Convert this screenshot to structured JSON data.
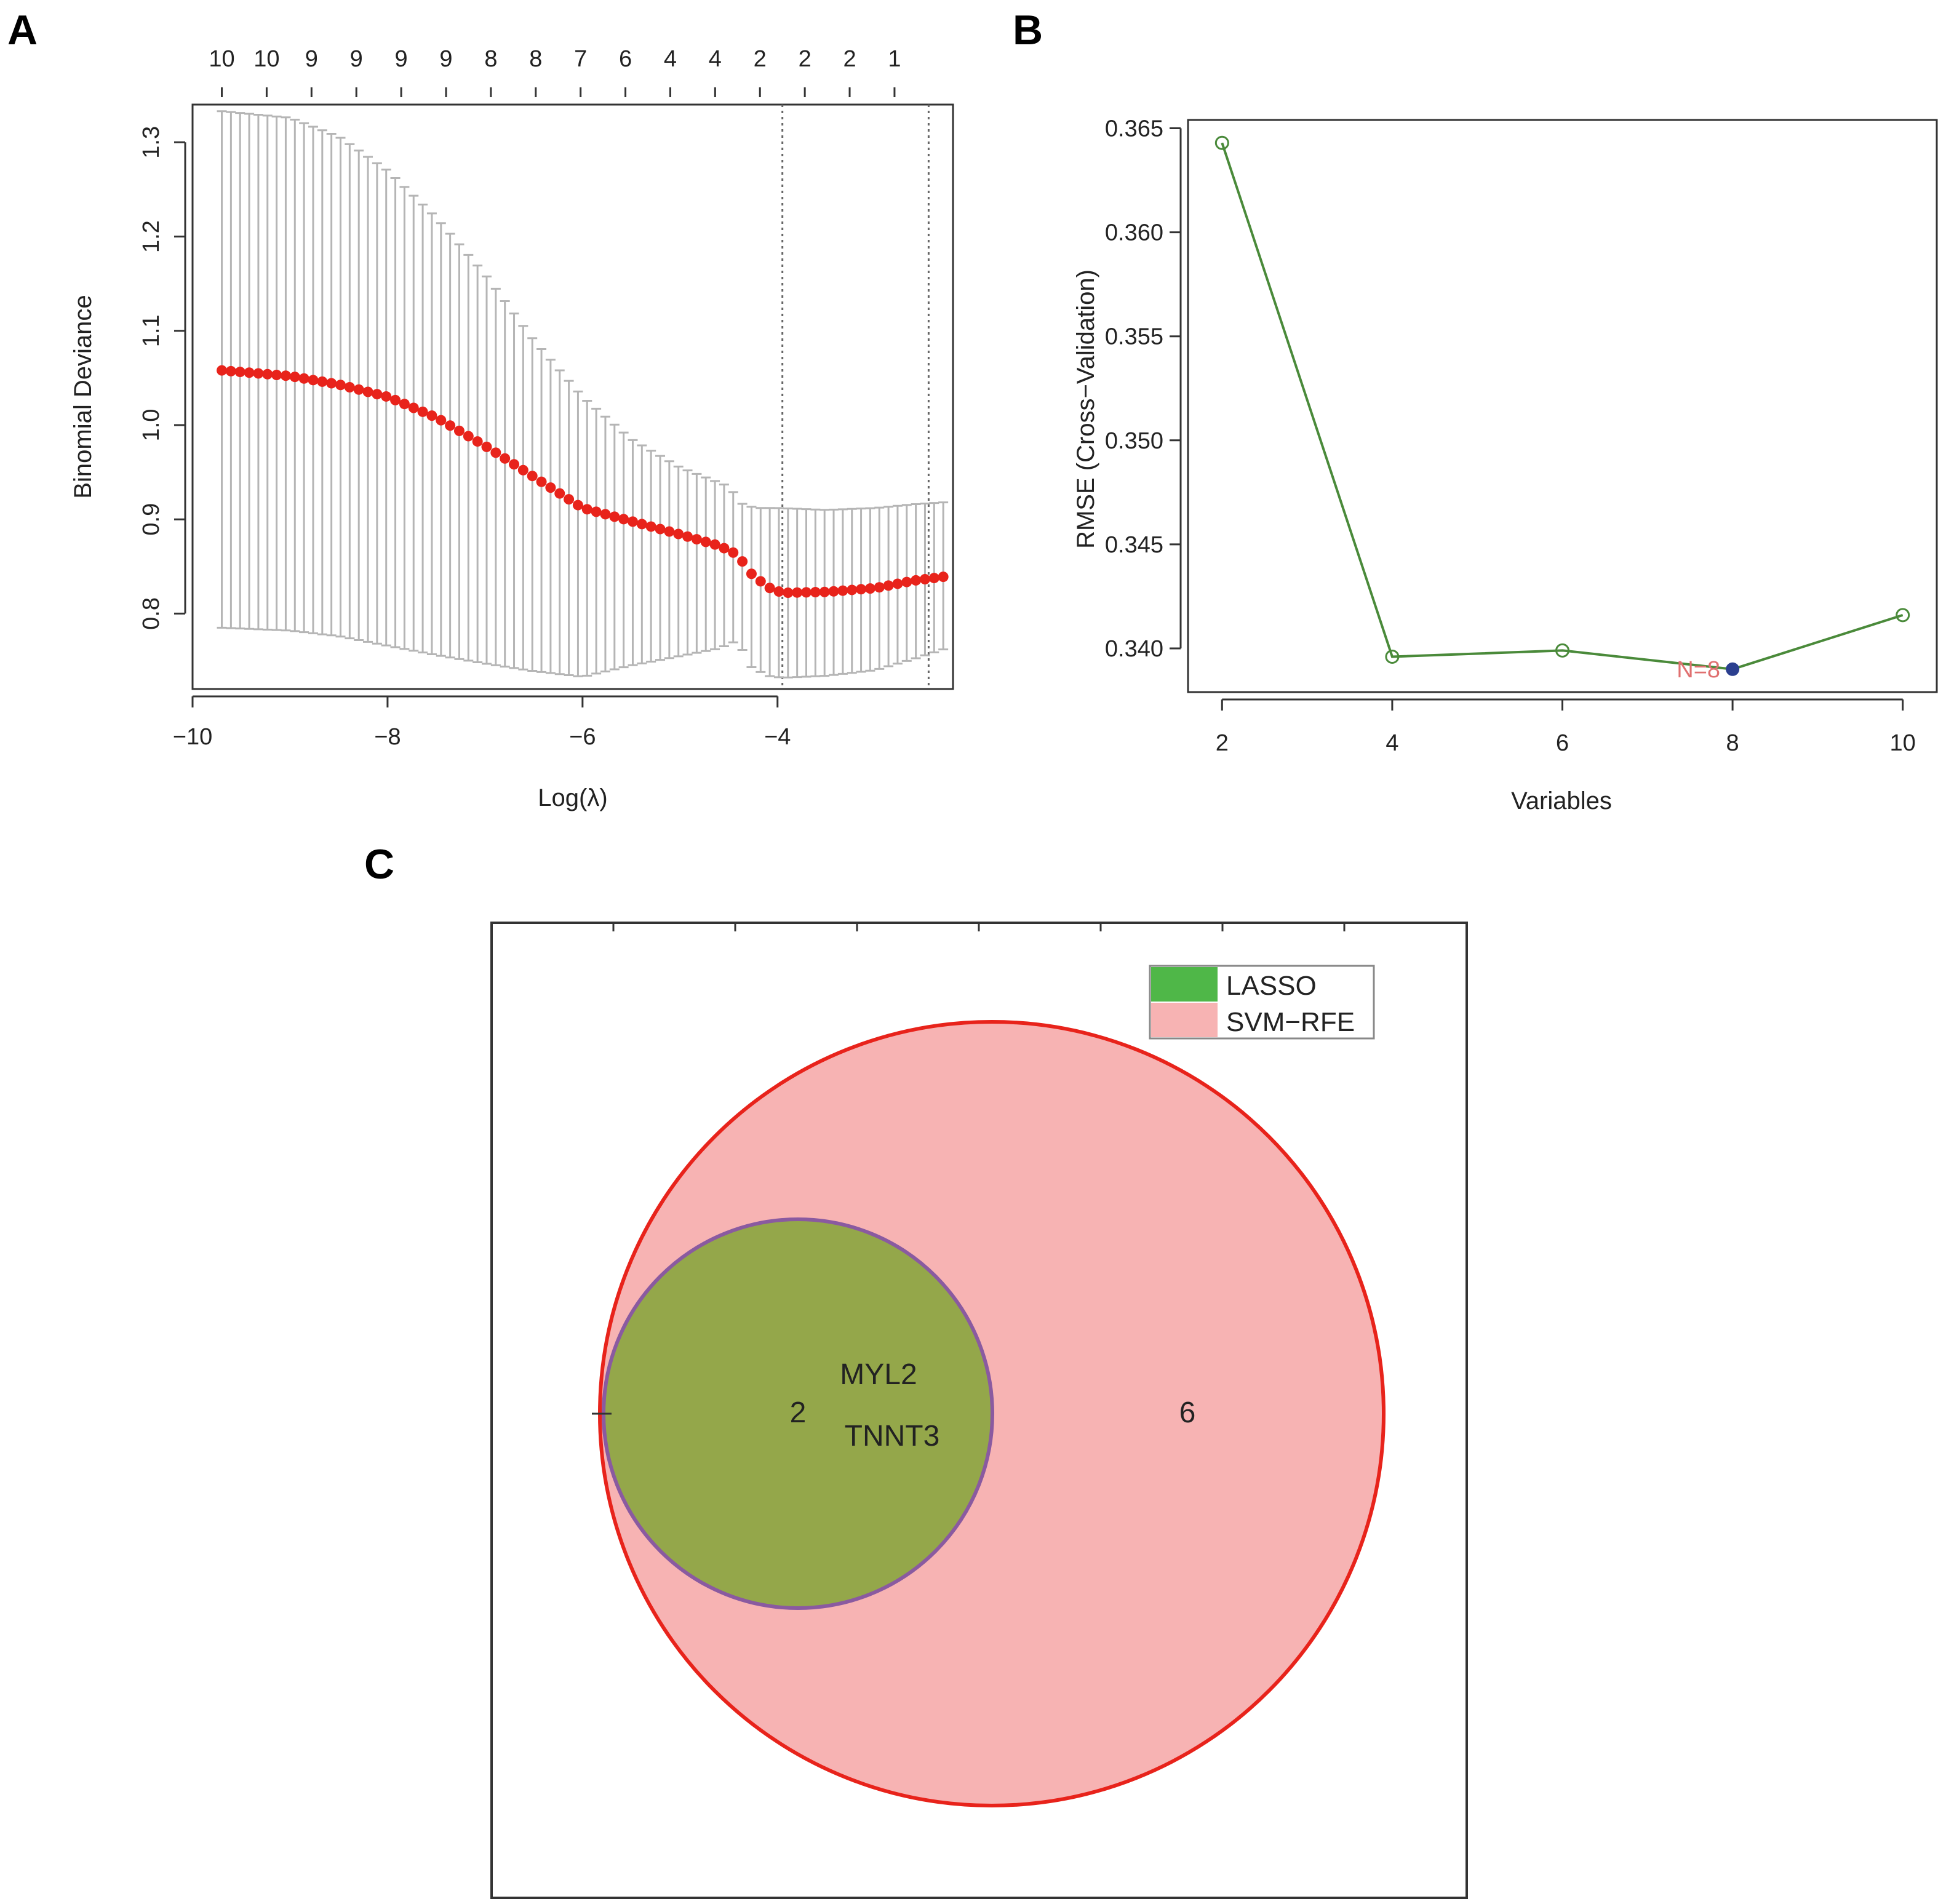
{
  "panels": {
    "a": {
      "letter": "A"
    },
    "b": {
      "letter": "B"
    },
    "c": {
      "letter": "C"
    }
  },
  "colors": {
    "point_red": "#e8231b",
    "error_grey": "#b5b5b5",
    "line_green": "#4a8a3a",
    "min_point_blue": "#2b3f8f",
    "annotation_red": "#e07070",
    "venn_green": "#94a74a",
    "venn_green_legend": "#4fb748",
    "venn_pink": "#f7b3b3",
    "venn_red_border": "#e8231b",
    "venn_purple_border": "#8a5aa0"
  },
  "chart_data": [
    {
      "id": "lasso_cv",
      "type": "scatter",
      "xlabel": "Log(λ)",
      "ylabel": "Binomial Deviance",
      "xlim": [
        -10,
        -2.2
      ],
      "ylim": [
        0.72,
        1.34
      ],
      "x_ticks": [
        -10,
        -8,
        -6,
        -4
      ],
      "x_tick_labels": [
        "−10",
        "−8",
        "−6",
        "−4"
      ],
      "y_ticks": [
        0.8,
        0.9,
        1.0,
        1.1,
        1.2,
        1.3
      ],
      "y_tick_labels": [
        "0.8",
        "0.9",
        "1.0",
        "1.1",
        "1.2",
        "1.3"
      ],
      "top_axis": {
        "x": [
          -9.7,
          -9.24,
          -8.78,
          -8.32,
          -7.86,
          -7.4,
          -6.94,
          -6.48,
          -6.02,
          -5.56,
          -5.1,
          -4.64,
          -4.18,
          -3.72,
          -3.26,
          -2.8
        ],
        "labels": [
          "10",
          "10",
          "9",
          "9",
          "9",
          "9",
          "8",
          "8",
          "7",
          "6",
          "4",
          "4",
          "2",
          "2",
          "2",
          "1"
        ]
      },
      "vlines": [
        -3.95,
        -2.45
      ],
      "cv_curve": {
        "x_start": -9.7,
        "x_end": -2.3,
        "n_points": 80,
        "mean_knots_x": [
          -9.7,
          -9.0,
          -8.5,
          -8.0,
          -7.5,
          -7.0,
          -6.5,
          -6.0,
          -5.5,
          -5.0,
          -4.6,
          -4.4,
          -4.3,
          -4.1,
          -3.95,
          -3.5,
          -3.0,
          -2.6,
          -2.3
        ],
        "mean_knots_y": [
          1.058,
          1.052,
          1.043,
          1.03,
          1.008,
          0.978,
          0.945,
          0.912,
          0.898,
          0.884,
          0.872,
          0.862,
          0.845,
          0.828,
          0.822,
          0.823,
          0.827,
          0.835,
          0.839
        ],
        "upper_knots_x": [
          -9.7,
          -9.0,
          -8.5,
          -8.0,
          -7.5,
          -7.0,
          -6.5,
          -6.0,
          -5.5,
          -5.0,
          -4.5,
          -4.35,
          -4.2,
          -4.0,
          -3.5,
          -3.0,
          -2.6,
          -2.3
        ],
        "upper_knots_y": [
          1.333,
          1.326,
          1.306,
          1.27,
          1.22,
          1.16,
          1.09,
          1.03,
          0.985,
          0.955,
          0.935,
          0.915,
          0.912,
          0.912,
          0.91,
          0.912,
          0.916,
          0.918
        ],
        "lower_knots_x": [
          -9.7,
          -9.0,
          -8.5,
          -8.0,
          -7.5,
          -7.0,
          -6.5,
          -6.0,
          -5.5,
          -5.0,
          -4.6,
          -4.4,
          -4.3,
          -4.1,
          -3.95,
          -3.5,
          -3.0,
          -2.6,
          -2.3
        ],
        "lower_knots_y": [
          0.785,
          0.782,
          0.776,
          0.766,
          0.756,
          0.747,
          0.739,
          0.733,
          0.745,
          0.755,
          0.763,
          0.772,
          0.745,
          0.734,
          0.732,
          0.734,
          0.74,
          0.752,
          0.762
        ]
      }
    },
    {
      "id": "svm_rfe",
      "type": "line",
      "xlabel": "Variables",
      "ylabel": "RMSE (Cross−Validation)",
      "xlim": [
        1.6,
        10.4
      ],
      "ylim": [
        0.3379,
        0.3654
      ],
      "x_ticks": [
        2,
        4,
        6,
        8,
        10
      ],
      "x_tick_labels": [
        "2",
        "4",
        "6",
        "8",
        "10"
      ],
      "y_ticks": [
        0.34,
        0.345,
        0.35,
        0.355,
        0.36,
        0.365
      ],
      "y_tick_labels": [
        "0.340",
        "0.345",
        "0.350",
        "0.355",
        "0.360",
        "0.365"
      ],
      "x": [
        2,
        4,
        6,
        8,
        10
      ],
      "y": [
        0.3643,
        0.3396,
        0.3399,
        0.339,
        0.3416
      ],
      "optimum": {
        "x": 8,
        "y": 0.339,
        "label": "N=8"
      }
    },
    {
      "id": "venn",
      "type": "venn",
      "sets": [
        {
          "name": "LASSO",
          "size": 2
        },
        {
          "name": "SVM−RFE",
          "size": 8
        }
      ],
      "region_counts": {
        "lasso_and_svm": "2",
        "svm_only": "6"
      },
      "intersection_genes": [
        "MYL2",
        "TNNT3"
      ],
      "legend": [
        "LASSO",
        "SVM−RFE"
      ]
    }
  ]
}
